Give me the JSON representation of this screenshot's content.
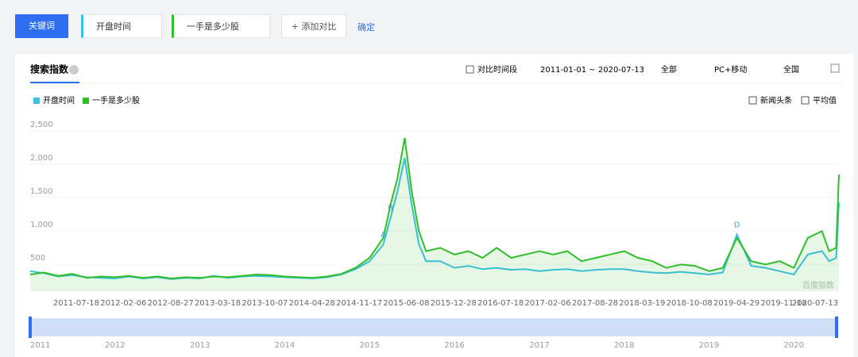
{
  "toolbar": {
    "keyword_button": "关键词",
    "terms": [
      "开盘时间",
      "一手是多少股"
    ],
    "add": "+ 添加对比",
    "confirm": "确定"
  },
  "card": {
    "tab": "搜索指数",
    "compare": "对比时间段",
    "range": "2011-01-01 ~ 2020-07-13",
    "filters": [
      "全部",
      "PC+移动",
      "全国"
    ],
    "options": [
      "新闻头条",
      "平均值"
    ],
    "watermark": "百度指数"
  },
  "chart_data": {
    "type": "line",
    "x": [
      "2011-01-01",
      "2011-03-01",
      "2011-05-01",
      "2011-07-01",
      "2011-09-01",
      "2011-11-01",
      "2012-01-01",
      "2012-03-01",
      "2012-05-01",
      "2012-07-01",
      "2012-09-01",
      "2012-11-01",
      "2013-01-01",
      "2013-03-01",
      "2013-05-01",
      "2013-07-01",
      "2013-09-01",
      "2013-11-01",
      "2014-01-01",
      "2014-03-01",
      "2014-05-01",
      "2014-07-01",
      "2014-09-01",
      "2014-11-01",
      "2015-01-01",
      "2015-03-01",
      "2015-04-01",
      "2015-05-01",
      "2015-06-01",
      "2015-07-01",
      "2015-08-01",
      "2015-09-01",
      "2015-11-01",
      "2016-01-01",
      "2016-03-01",
      "2016-05-01",
      "2016-07-01",
      "2016-09-01",
      "2016-11-01",
      "2017-01-01",
      "2017-03-01",
      "2017-05-01",
      "2017-07-01",
      "2017-09-01",
      "2017-11-01",
      "2018-01-01",
      "2018-03-01",
      "2018-05-01",
      "2018-07-01",
      "2018-09-01",
      "2018-11-01",
      "2019-01-01",
      "2019-03-01",
      "2019-05-01",
      "2019-07-01",
      "2019-09-01",
      "2019-11-01",
      "2020-01-01",
      "2020-03-01",
      "2020-05-01",
      "2020-06-01",
      "2020-07-01",
      "2020-07-13"
    ],
    "series": [
      {
        "name": "开盘时间",
        "color": "#3cc0e8",
        "values": [
          300,
          270,
          220,
          240,
          210,
          200,
          190,
          220,
          190,
          210,
          180,
          200,
          190,
          230,
          200,
          220,
          230,
          220,
          210,
          200,
          190,
          210,
          250,
          330,
          450,
          700,
          1100,
          1500,
          2000,
          1300,
          700,
          450,
          450,
          350,
          380,
          330,
          350,
          320,
          330,
          300,
          320,
          330,
          300,
          320,
          330,
          330,
          300,
          280,
          270,
          290,
          270,
          250,
          280,
          850,
          380,
          350,
          300,
          250,
          550,
          600,
          450,
          500,
          1330
        ]
      },
      {
        "name": "一手是多少股",
        "color": "#2fbf2a",
        "values": [
          250,
          280,
          230,
          260,
          200,
          220,
          210,
          230,
          200,
          220,
          190,
          210,
          200,
          220,
          210,
          230,
          250,
          240,
          220,
          210,
          200,
          220,
          260,
          350,
          500,
          800,
          1300,
          1700,
          2300,
          1500,
          900,
          600,
          650,
          550,
          600,
          500,
          650,
          500,
          550,
          600,
          550,
          600,
          450,
          500,
          550,
          600,
          500,
          450,
          350,
          400,
          380,
          300,
          350,
          800,
          450,
          400,
          450,
          350,
          800,
          900,
          600,
          650,
          1750
        ]
      }
    ],
    "xlim": [
      "2011-01-01",
      "2020-07-13"
    ],
    "xticks": [
      "2011-07-18",
      "2012-02-06",
      "2012-08-27",
      "2013-03-18",
      "2013-10-07",
      "2014-04-28",
      "2014-11-17",
      "2015-06-08",
      "2015-12-28",
      "2016-07-18",
      "2017-02-06",
      "2017-08-28",
      "2018-03-19",
      "2018-10-08",
      "2019-04-29",
      "2019-11-18",
      "2020-07-13"
    ],
    "ylim": [
      0,
      2500
    ],
    "yticks": [
      500,
      {
        "value": 1000,
        "label": "1,000"
      },
      {
        "value": 1500,
        "label": "1,500"
      },
      {
        "value": 2000,
        "label": "2,000"
      },
      {
        "value": 2500,
        "label": "2,500"
      }
    ],
    "grid": true,
    "annotations": [
      {
        "label": "A",
        "x": "2015-03-01"
      },
      {
        "label": "B",
        "x": "2015-04-01"
      },
      {
        "label": "D",
        "x": "2019-05-01"
      }
    ],
    "navigator_years": [
      2011,
      2012,
      2013,
      2014,
      2015,
      2016,
      2017,
      2018,
      2019,
      2020
    ]
  }
}
